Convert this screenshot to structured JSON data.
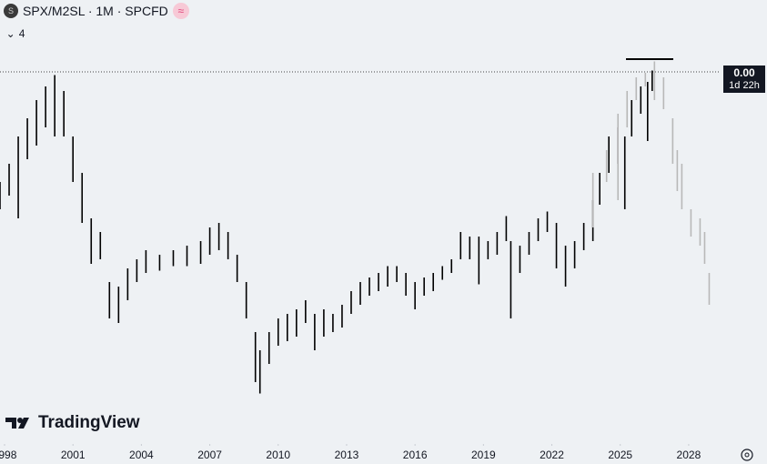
{
  "header": {
    "symbol": "SPX/M2SL · 1M · SPCFD",
    "indicator_count": 4
  },
  "price_label": {
    "value": "0.00",
    "countdown": "1d 22h"
  },
  "branding": "TradingView",
  "chart_data": {
    "type": "range",
    "xlim": [
      1997.8,
      2029.4
    ],
    "xticks": [
      1998,
      2001,
      2004,
      2007,
      2010,
      2013,
      2016,
      2019,
      2022,
      2025,
      2028
    ],
    "ylim": [
      0,
      0.368
    ],
    "series": [
      {
        "color": "#000000",
        "x": [
          1997.8,
          1998.2,
          1998.6,
          1999.0,
          1999.4,
          1999.8,
          2000.2,
          2000.6,
          2001.0,
          2001.4,
          2001.8,
          2002.2,
          2002.6,
          2003.0,
          2003.4,
          2003.8,
          2004.2,
          2004.8,
          2005.4,
          2006.0,
          2006.6,
          2007.0,
          2007.4,
          2007.8,
          2008.2,
          2008.6,
          2009.0,
          2009.2,
          2009.6,
          2010.0,
          2010.4,
          2010.8,
          2011.2,
          2011.6,
          2012.0,
          2012.4,
          2012.8,
          2013.2,
          2013.6,
          2014.0,
          2014.4,
          2014.8,
          2015.2,
          2015.6,
          2016.0,
          2016.4,
          2016.8,
          2017.2,
          2017.6,
          2018.0,
          2018.4,
          2018.8,
          2019.2,
          2019.6,
          2020.0,
          2020.2,
          2020.6,
          2021.0,
          2021.4,
          2021.8,
          2022.2,
          2022.6,
          2023.0,
          2023.4,
          2023.8,
          2024.1,
          2024.5,
          2024.9,
          2025.2,
          2025.5,
          2025.9,
          2026.2,
          2026.4
        ],
        "high": [
          0.232,
          0.248,
          0.272,
          0.288,
          0.304,
          0.316,
          0.326,
          0.312,
          0.272,
          0.24,
          0.2,
          0.188,
          0.144,
          0.14,
          0.156,
          0.164,
          0.172,
          0.168,
          0.172,
          0.176,
          0.18,
          0.192,
          0.196,
          0.188,
          0.168,
          0.144,
          0.1,
          0.084,
          0.1,
          0.112,
          0.116,
          0.12,
          0.128,
          0.116,
          0.12,
          0.116,
          0.124,
          0.136,
          0.144,
          0.148,
          0.152,
          0.158,
          0.158,
          0.152,
          0.144,
          0.148,
          0.152,
          0.158,
          0.164,
          0.188,
          0.184,
          0.184,
          0.18,
          0.188,
          0.202,
          0.18,
          0.176,
          0.188,
          0.2,
          0.206,
          0.196,
          0.176,
          0.18,
          0.196,
          0.216,
          0.24,
          0.272,
          0.28,
          0.272,
          0.304,
          0.316,
          0.32,
          0.33
        ],
        "low": [
          0.208,
          0.22,
          0.2,
          0.252,
          0.264,
          0.28,
          0.272,
          0.272,
          0.232,
          0.196,
          0.16,
          0.164,
          0.112,
          0.108,
          0.128,
          0.144,
          0.152,
          0.154,
          0.158,
          0.158,
          0.16,
          0.168,
          0.172,
          0.164,
          0.144,
          0.112,
          0.056,
          0.046,
          0.072,
          0.088,
          0.092,
          0.096,
          0.108,
          0.084,
          0.096,
          0.1,
          0.104,
          0.116,
          0.124,
          0.132,
          0.136,
          0.14,
          0.144,
          0.132,
          0.12,
          0.132,
          0.136,
          0.146,
          0.152,
          0.164,
          0.164,
          0.142,
          0.164,
          0.168,
          0.18,
          0.112,
          0.152,
          0.168,
          0.18,
          0.188,
          0.156,
          0.14,
          0.156,
          0.172,
          0.18,
          0.212,
          0.24,
          0.248,
          0.208,
          0.272,
          0.292,
          0.268,
          0.312
        ]
      },
      {
        "color": "#b8b8b8",
        "x": [
          2023.8,
          2024.4,
          2024.9,
          2025.3,
          2025.7,
          2026.1,
          2026.5,
          2026.9,
          2027.3,
          2027.5,
          2027.7,
          2028.1,
          2028.5,
          2028.7,
          2028.9
        ],
        "high": [
          0.24,
          0.26,
          0.292,
          0.312,
          0.324,
          0.328,
          0.338,
          0.324,
          0.288,
          0.26,
          0.248,
          0.208,
          0.2,
          0.188,
          0.152
        ],
        "low": [
          0.192,
          0.232,
          0.216,
          0.28,
          0.304,
          0.316,
          0.304,
          0.296,
          0.248,
          0.224,
          0.208,
          0.184,
          0.176,
          0.16,
          0.124
        ]
      }
    ]
  }
}
